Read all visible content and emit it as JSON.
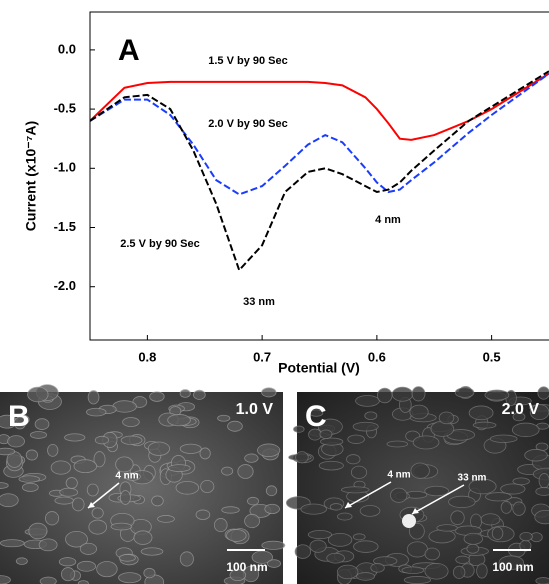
{
  "chart_data": {
    "type": "line",
    "annotations": [
      "A",
      "1.5 V by 90 Sec",
      "2.0 V by 90 Sec",
      "2.5 V by 90 Sec",
      "33 nm",
      "4 nm"
    ],
    "x_label": "Potential (V)",
    "y_label": "Current (x10⁻⁷A)",
    "x": [
      0.85,
      0.82,
      0.8,
      0.78,
      0.76,
      0.74,
      0.72,
      0.7,
      0.68,
      0.66,
      0.645,
      0.63,
      0.61,
      0.6,
      0.59,
      0.58,
      0.57,
      0.55,
      0.52,
      0.5,
      0.45
    ],
    "series": [
      {
        "color": "#ff0000",
        "dash": false,
        "values": [
          -0.6,
          -0.32,
          -0.28,
          -0.27,
          -0.27,
          -0.27,
          -0.27,
          -0.27,
          -0.27,
          -0.27,
          -0.28,
          -0.3,
          -0.4,
          -0.5,
          -0.62,
          -0.75,
          -0.76,
          -0.72,
          -0.6,
          -0.5,
          -0.2
        ]
      },
      {
        "color": "#1a3cff",
        "dash": true,
        "values": [
          -0.6,
          -0.42,
          -0.42,
          -0.55,
          -0.8,
          -1.1,
          -1.22,
          -1.15,
          -0.98,
          -0.8,
          -0.72,
          -0.78,
          -1.0,
          -1.12,
          -1.2,
          -1.18,
          -1.1,
          -0.95,
          -0.7,
          -0.55,
          -0.2
        ]
      },
      {
        "color": "#000000",
        "dash": true,
        "values": [
          -0.6,
          -0.4,
          -0.38,
          -0.5,
          -0.85,
          -1.3,
          -1.86,
          -1.65,
          -1.2,
          -1.03,
          -1.0,
          -1.05,
          -1.15,
          -1.2,
          -1.18,
          -1.12,
          -1.02,
          -0.85,
          -0.6,
          -0.48,
          -0.18
        ]
      }
    ],
    "xlim": [
      0.85,
      0.45
    ],
    "ylim": [
      -2.45,
      0.32
    ],
    "xticks": [
      0.8,
      0.7,
      0.6,
      0.5
    ],
    "yticks": [
      {
        "value": 0,
        "label": "0.0"
      },
      -0.5,
      {
        "value": -1,
        "label": "-1.0"
      },
      -1.5,
      {
        "value": -2,
        "label": "-2.0"
      }
    ]
  },
  "panels": [
    {
      "label": "B",
      "voltage": "1.0 V",
      "notes": [
        "4 nm"
      ],
      "scale": "100 nm"
    },
    {
      "label": "C",
      "voltage": "2.0 V",
      "notes": [
        "4 nm",
        "33 nm"
      ],
      "scale": "100 nm"
    }
  ]
}
